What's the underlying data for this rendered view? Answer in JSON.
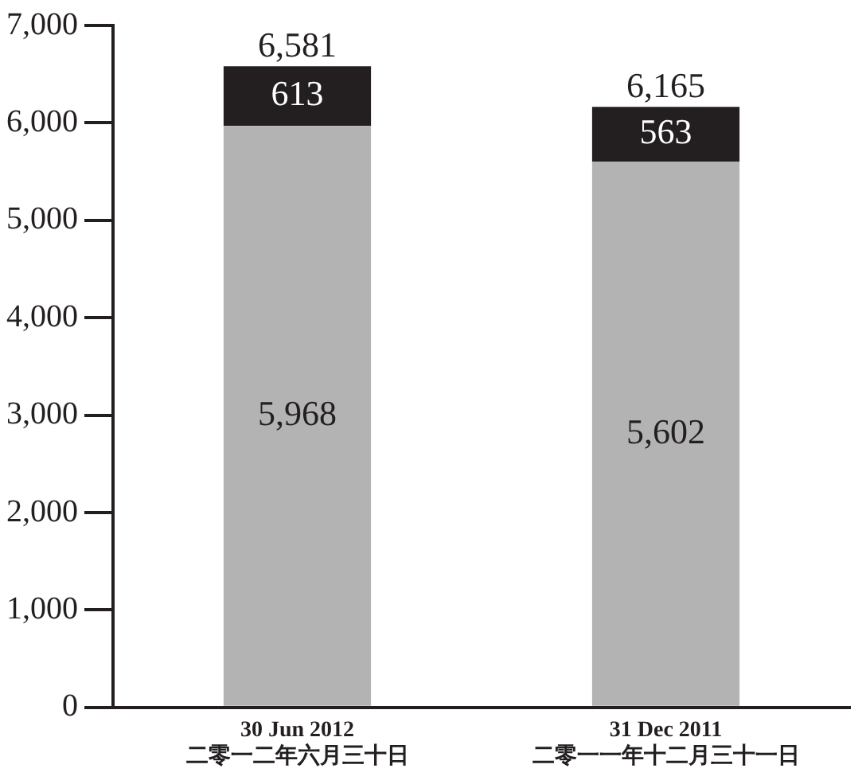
{
  "chart_data": {
    "type": "bar",
    "stacked": true,
    "categories": [
      "30 Jun 2012\n二零一二年六月三十日",
      "31 Dec 2011\n二零一一年十二月三十一日"
    ],
    "series": [
      {
        "color": "#b3b3b3",
        "values": [
          5968,
          5602
        ],
        "value_labels": [
          "5,968",
          "5,602"
        ]
      },
      {
        "color": "#231f20",
        "values": [
          613,
          563
        ],
        "value_labels": [
          "613",
          "563"
        ]
      }
    ],
    "totals": [
      "6,581",
      "6,165"
    ],
    "ylim": [
      0,
      7000
    ],
    "yticks": [
      0,
      {
        "value": 1000,
        "label": "1,000"
      },
      {
        "value": 2000,
        "label": "2,000"
      },
      {
        "value": 3000,
        "label": "3,000"
      },
      {
        "value": 4000,
        "label": "4,000"
      },
      {
        "value": 5000,
        "label": "5,000"
      },
      {
        "value": 6000,
        "label": "6,000"
      },
      {
        "value": 7000,
        "label": "7,000"
      }
    ],
    "grid": false,
    "legend": false
  }
}
